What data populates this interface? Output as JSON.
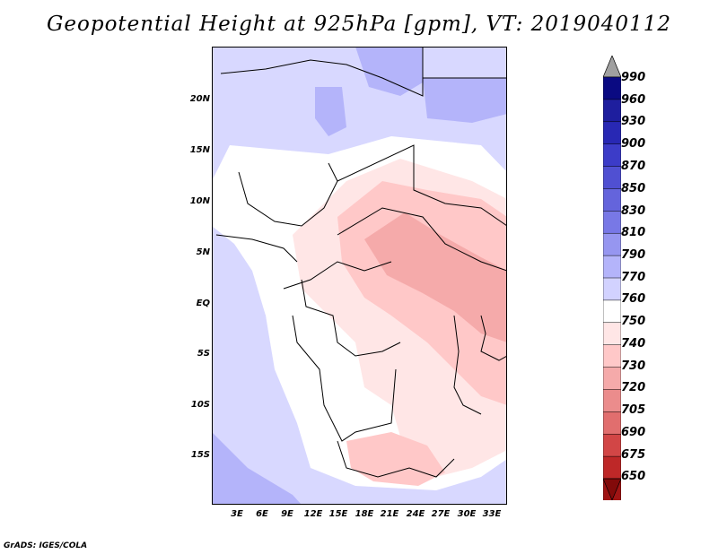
{
  "title": "Geopotential Height at 925hPa [gpm], VT: 2019040112",
  "map": {
    "lat_labels": [
      "20N",
      "15N",
      "10N",
      "5N",
      "EQ",
      "5S",
      "10S",
      "15S"
    ],
    "lon_labels": [
      "3E",
      "6E",
      "9E",
      "12E",
      "15E",
      "18E",
      "21E",
      "24E",
      "27E",
      "30E",
      "33E"
    ]
  },
  "colorbar": {
    "levels": [
      "990",
      "960",
      "930",
      "900",
      "870",
      "850",
      "830",
      "810",
      "790",
      "770",
      "760",
      "750",
      "740",
      "730",
      "720",
      "705",
      "690",
      "675",
      "650"
    ],
    "colors": [
      "#0a0a82",
      "#1e1e9e",
      "#2828b4",
      "#3c3cc8",
      "#5050d2",
      "#6464dc",
      "#7878e6",
      "#9696f0",
      "#b4b4fa",
      "#d2d2ff",
      "#ffffff",
      "#ffe6e6",
      "#ffc8c8",
      "#f5aaaa",
      "#eb8c8c",
      "#e16e6e",
      "#d24646",
      "#be2828",
      "#a01414",
      "#820a0a"
    ],
    "top_arrow_color": "#a0a0a0"
  },
  "footer": "GrADS: IGES/COLA"
}
